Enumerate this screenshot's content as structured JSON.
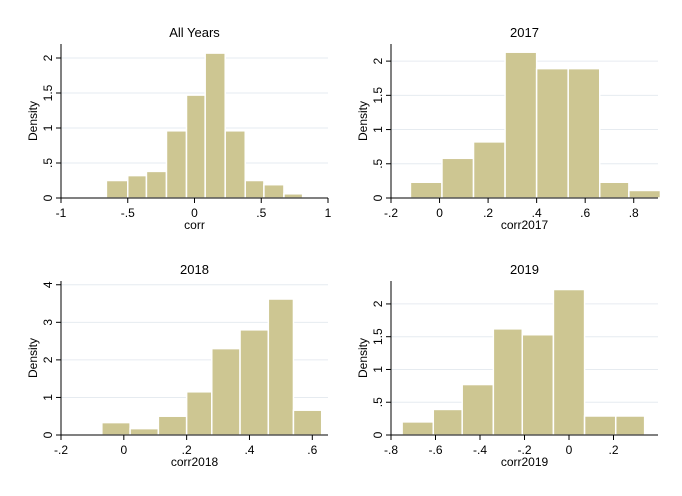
{
  "chart_data": [
    {
      "type": "bar",
      "title": "All Years",
      "xlabel": "corr",
      "ylabel": "Density",
      "xlim": [
        -1,
        1
      ],
      "ylim": [
        0,
        2.2
      ],
      "xticks": [
        -1,
        -0.5,
        0,
        0.5,
        1
      ],
      "xtick_labels": [
        "-1",
        "-.5",
        "0",
        ".5",
        "1"
      ],
      "yticks": [
        0,
        0.5,
        1,
        1.5,
        2
      ],
      "ytick_labels": [
        "0",
        ".5",
        "1",
        "1.5",
        "2"
      ],
      "bin_edges": [
        -0.66,
        -0.5,
        -0.36,
        -0.21,
        -0.06,
        0.08,
        0.23,
        0.38,
        0.52,
        0.67,
        0.81
      ],
      "values": [
        0.25,
        0.32,
        0.38,
        0.96,
        1.47,
        2.07,
        0.96,
        0.25,
        0.19,
        0.06
      ],
      "grid": true,
      "bar_color": "#cdc692",
      "edge_color": "#ffffff"
    },
    {
      "type": "bar",
      "title": "2017",
      "xlabel": "corr2017",
      "ylabel": "Density",
      "xlim": [
        -0.2,
        0.9
      ],
      "ylim": [
        0,
        2.25
      ],
      "xticks": [
        -0.2,
        0,
        0.2,
        0.4,
        0.6,
        0.8
      ],
      "xtick_labels": [
        "-.2",
        "0",
        ".2",
        ".4",
        ".6",
        ".8"
      ],
      "yticks": [
        0,
        0.5,
        1,
        1.5,
        2
      ],
      "ytick_labels": [
        "0",
        ".5",
        "1",
        "1.5",
        "2"
      ],
      "bin_edges": [
        -0.12,
        0.01,
        0.14,
        0.27,
        0.4,
        0.53,
        0.66,
        0.78,
        0.91
      ],
      "values": [
        0.23,
        0.58,
        0.82,
        2.13,
        1.89,
        1.89,
        0.23,
        0.11
      ],
      "grid": true,
      "bar_color": "#cdc692",
      "edge_color": "#ffffff"
    },
    {
      "type": "bar",
      "title": "2018",
      "xlabel": "corr2018",
      "ylabel": "Density",
      "xlim": [
        -0.2,
        0.65
      ],
      "ylim": [
        0,
        4.1
      ],
      "xticks": [
        -0.2,
        0,
        0.2,
        0.4,
        0.6
      ],
      "xtick_labels": [
        "-.2",
        "0",
        ".2",
        ".4",
        ".6"
      ],
      "yticks": [
        0,
        1,
        2,
        3,
        4
      ],
      "ytick_labels": [
        "0",
        "1",
        "2",
        "3",
        "4"
      ],
      "bin_edges": [
        -0.07,
        0.02,
        0.11,
        0.2,
        0.28,
        0.37,
        0.46,
        0.54,
        0.63
      ],
      "values": [
        0.33,
        0.17,
        0.5,
        1.15,
        2.3,
        2.8,
        3.62,
        0.66
      ],
      "grid": true,
      "bar_color": "#cdc692",
      "edge_color": "#ffffff"
    },
    {
      "type": "bar",
      "title": "2019",
      "xlabel": "corr2019",
      "ylabel": "Density",
      "xlim": [
        -0.8,
        0.4
      ],
      "ylim": [
        0,
        2.35
      ],
      "xticks": [
        -0.8,
        -0.6,
        -0.4,
        -0.2,
        0,
        0.2
      ],
      "xtick_labels": [
        "-.8",
        "-.6",
        "-.4",
        "-.2",
        "0",
        ".2"
      ],
      "yticks": [
        0,
        0.5,
        1,
        1.5,
        2
      ],
      "ytick_labels": [
        "0",
        ".5",
        "1",
        "1.5",
        "2"
      ],
      "bin_edges": [
        -0.75,
        -0.61,
        -0.48,
        -0.34,
        -0.21,
        -0.07,
        0.07,
        0.21,
        0.34
      ],
      "values": [
        0.2,
        0.39,
        0.77,
        1.62,
        1.53,
        2.22,
        0.29,
        0.29
      ],
      "grid": true,
      "bar_color": "#cdc692",
      "edge_color": "#ffffff"
    }
  ]
}
